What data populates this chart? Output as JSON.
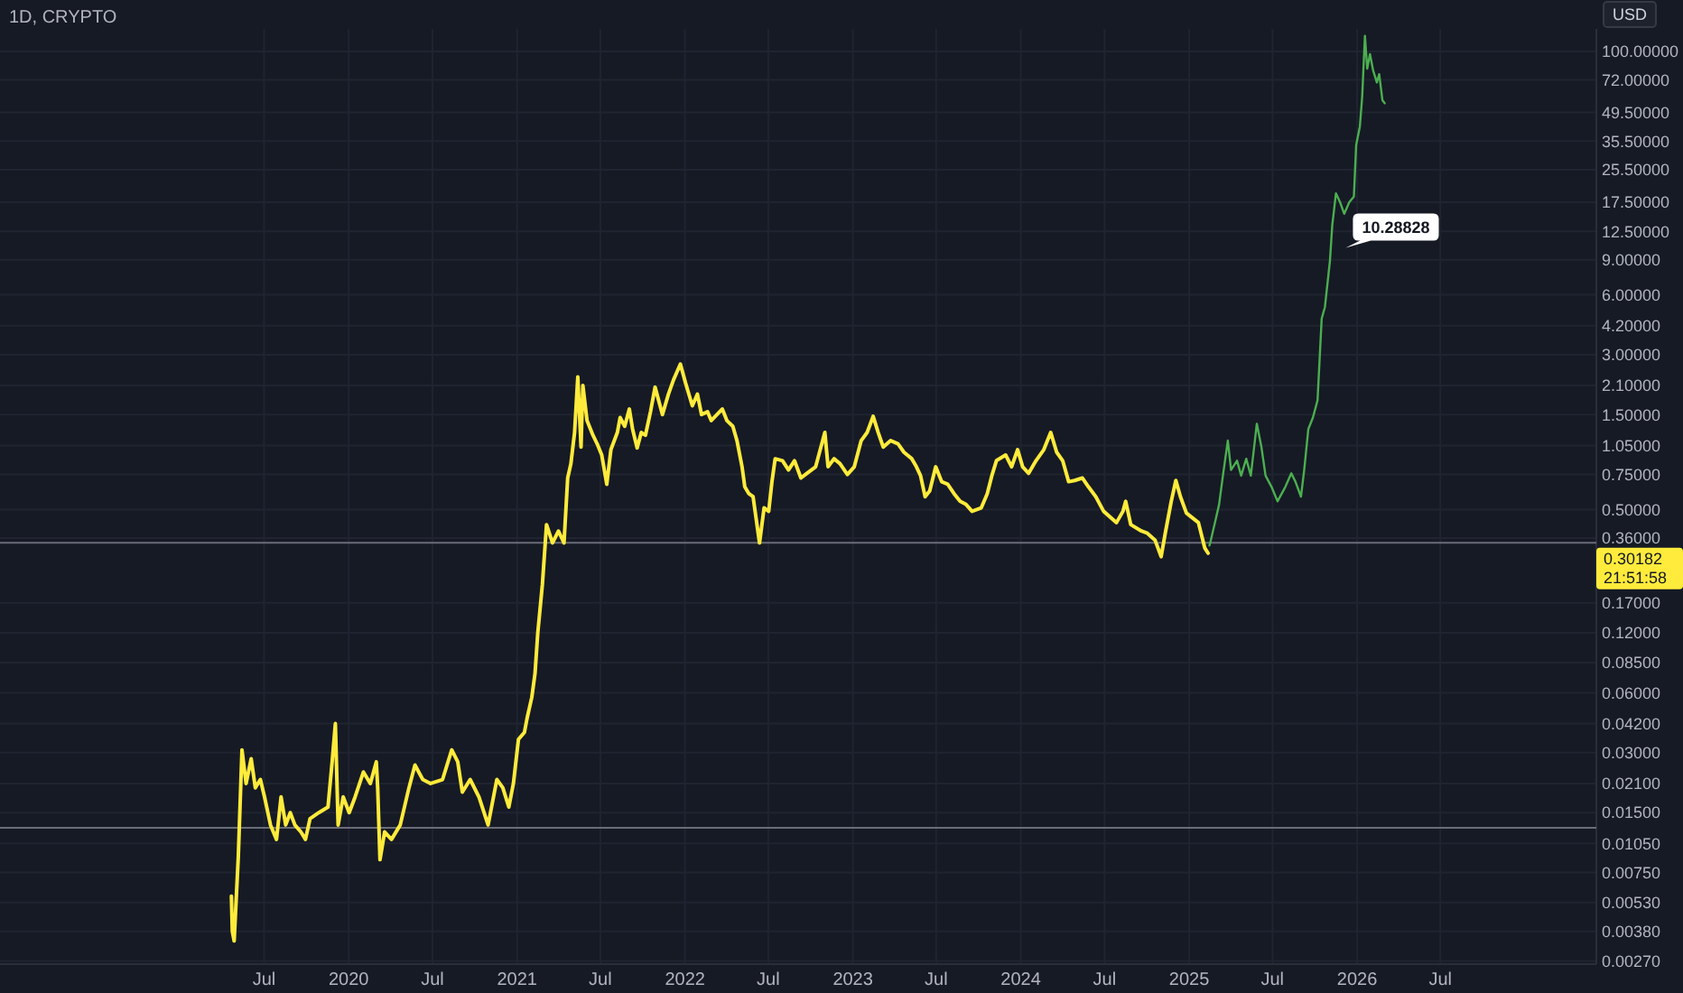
{
  "chart_data": {
    "type": "line",
    "title": "1D, CRYPTO",
    "ylabel": "USD",
    "log": true,
    "grid": true,
    "xlim": [
      "2017-12-04",
      "2027-06-05"
    ],
    "xticks": [
      {
        "value": "2019-07-01",
        "label": "Jul"
      },
      {
        "value": "2020-01-01",
        "label": "2020"
      },
      {
        "value": "2020-07-01",
        "label": "Jul"
      },
      {
        "value": "2021-01-01",
        "label": "2021"
      },
      {
        "value": "2021-07-01",
        "label": "Jul"
      },
      {
        "value": "2022-01-01",
        "label": "2022"
      },
      {
        "value": "2022-07-01",
        "label": "Jul"
      },
      {
        "value": "2023-01-01",
        "label": "2023"
      },
      {
        "value": "2023-07-01",
        "label": "Jul"
      },
      {
        "value": "2024-01-01",
        "label": "2024"
      },
      {
        "value": "2024-07-01",
        "label": "Jul"
      },
      {
        "value": "2025-01-01",
        "label": "2025"
      },
      {
        "value": "2025-07-01",
        "label": "Jul"
      },
      {
        "value": "2026-01-01",
        "label": "2026"
      },
      {
        "value": "2026-07-01",
        "label": "Jul"
      }
    ],
    "ylim": [
      0.0026,
      130
    ],
    "yticks": [
      {
        "value": 100,
        "label": "100.00000"
      },
      {
        "value": 72,
        "label": "72.00000"
      },
      {
        "value": 49.5,
        "label": "49.50000"
      },
      {
        "value": 35.5,
        "label": "35.50000"
      },
      {
        "value": 25.5,
        "label": "25.50000"
      },
      {
        "value": 17.5,
        "label": "17.50000"
      },
      {
        "value": 12.5,
        "label": "12.50000"
      },
      {
        "value": 9,
        "label": "9.00000"
      },
      {
        "value": 6,
        "label": "6.00000"
      },
      {
        "value": 4.2,
        "label": "4.20000"
      },
      {
        "value": 3,
        "label": "3.00000"
      },
      {
        "value": 2.1,
        "label": "2.10000"
      },
      {
        "value": 1.5,
        "label": "1.50000"
      },
      {
        "value": 1.05,
        "label": "1.05000"
      },
      {
        "value": 0.75,
        "label": "0.75000"
      },
      {
        "value": 0.5,
        "label": "0.50000"
      },
      {
        "value": 0.36,
        "label": "0.36000"
      },
      {
        "value": 0.17,
        "label": "0.17000"
      },
      {
        "value": 0.12,
        "label": "0.12000"
      },
      {
        "value": 0.085,
        "label": "0.08500"
      },
      {
        "value": 0.06,
        "label": "0.06000"
      },
      {
        "value": 0.042,
        "label": "0.04200"
      },
      {
        "value": 0.03,
        "label": "0.03000"
      },
      {
        "value": 0.021,
        "label": "0.02100"
      },
      {
        "value": 0.015,
        "label": "0.01500"
      },
      {
        "value": 0.0105,
        "label": "0.01050"
      },
      {
        "value": 0.0075,
        "label": "0.00750"
      },
      {
        "value": 0.0053,
        "label": "0.00530"
      },
      {
        "value": 0.0038,
        "label": "0.00380"
      },
      {
        "value": 0.0027,
        "label": "0.00270"
      }
    ],
    "ref_lines": [
      {
        "axis": "y",
        "value": 0.34,
        "color": "#6a6d78"
      },
      {
        "axis": "y",
        "value": 0.0126,
        "color": "#6a6d78"
      }
    ],
    "annotations": [
      "10.28828",
      "0.30182",
      "21:51:58"
    ],
    "series": [
      {
        "color": "#ffeb3b",
        "x": [
          "2019-04-21",
          "2019-04-23",
          "2019-04-27",
          "2019-05-06",
          "2019-05-14",
          "2019-05-23",
          "2019-06-03",
          "2019-06-12",
          "2019-06-23",
          "2019-07-02",
          "2019-07-15",
          "2019-07-28",
          "2019-08-07",
          "2019-08-17",
          "2019-08-27",
          "2019-09-06",
          "2019-09-19",
          "2019-09-29",
          "2019-10-09",
          "2019-10-28",
          "2019-11-17",
          "2019-11-26",
          "2019-12-03",
          "2019-12-09",
          "2019-12-20",
          "2020-01-02",
          "2020-01-15",
          "2020-02-02",
          "2020-02-17",
          "2020-03-01",
          "2020-03-04",
          "2020-03-09",
          "2020-03-19",
          "2020-04-03",
          "2020-04-22",
          "2020-05-11",
          "2020-05-24",
          "2020-06-10",
          "2020-06-27",
          "2020-07-23",
          "2020-08-12",
          "2020-08-25",
          "2020-09-04",
          "2020-09-21",
          "2020-10-10",
          "2020-10-30",
          "2020-11-18",
          "2020-12-01",
          "2020-12-14",
          "2020-12-24",
          "2021-01-04",
          "2021-01-17",
          "2021-01-23",
          "2021-02-02",
          "2021-02-09",
          "2021-02-15",
          "2021-02-25",
          "2021-03-06",
          "2021-03-19",
          "2021-04-01",
          "2021-04-13",
          "2021-04-21",
          "2021-04-28",
          "2021-05-06",
          "2021-05-13",
          "2021-05-20",
          "2021-05-24",
          "2021-06-02",
          "2021-06-15",
          "2021-06-24",
          "2021-07-04",
          "2021-07-15",
          "2021-07-24",
          "2021-08-07",
          "2021-08-13",
          "2021-08-23",
          "2021-09-02",
          "2021-09-09",
          "2021-09-19",
          "2021-09-28",
          "2021-10-07",
          "2021-10-18",
          "2021-10-28",
          "2021-11-13",
          "2021-11-26",
          "2021-12-07",
          "2021-12-22",
          "2022-01-02",
          "2022-01-17",
          "2022-01-28",
          "2022-02-06",
          "2022-02-19",
          "2022-02-27",
          "2022-03-23",
          "2022-04-02",
          "2022-04-15",
          "2022-04-24",
          "2022-05-05",
          "2022-05-11",
          "2022-05-20",
          "2022-05-29",
          "2022-06-12",
          "2022-06-22",
          "2022-07-02",
          "2022-07-09",
          "2022-07-16",
          "2022-08-01",
          "2022-08-14",
          "2022-08-27",
          "2022-09-10",
          "2022-09-23",
          "2022-10-12",
          "2022-11-01",
          "2022-11-08",
          "2022-11-21",
          "2022-12-04",
          "2022-12-20",
          "2023-01-04",
          "2023-01-19",
          "2023-02-01",
          "2023-02-14",
          "2023-02-25",
          "2023-03-08",
          "2023-03-24",
          "2023-04-09",
          "2023-04-22",
          "2023-05-09",
          "2023-05-19",
          "2023-05-28",
          "2023-06-07",
          "2023-06-17",
          "2023-06-30",
          "2023-07-13",
          "2023-07-26",
          "2023-08-09",
          "2023-08-22",
          "2023-09-04",
          "2023-09-17",
          "2023-10-07",
          "2023-10-20",
          "2023-10-30",
          "2023-11-09",
          "2023-11-29",
          "2023-12-12",
          "2023-12-25",
          "2024-01-05",
          "2024-01-18",
          "2024-02-03",
          "2024-02-20",
          "2024-03-06",
          "2024-03-19",
          "2024-04-01",
          "2024-04-14",
          "2024-04-27",
          "2024-05-14",
          "2024-05-27",
          "2024-06-12",
          "2024-06-29",
          "2024-07-27",
          "2024-08-10",
          "2024-08-16",
          "2024-08-27",
          "2024-09-19",
          "2024-10-02",
          "2024-10-19",
          "2024-11-01",
          "2024-11-10",
          "2024-11-23",
          "2024-12-03",
          "2024-12-13",
          "2024-12-26",
          "2025-01-21",
          "2025-02-04",
          "2025-02-11"
        ],
        "values": [
          0.0057,
          0.0038,
          0.0034,
          0.009,
          0.031,
          0.021,
          0.028,
          0.02,
          0.022,
          0.018,
          0.013,
          0.011,
          0.018,
          0.013,
          0.015,
          0.013,
          0.012,
          0.011,
          0.014,
          0.015,
          0.016,
          0.027,
          0.042,
          0.013,
          0.018,
          0.015,
          0.018,
          0.024,
          0.021,
          0.027,
          0.02,
          0.0087,
          0.012,
          0.011,
          0.013,
          0.02,
          0.026,
          0.022,
          0.021,
          0.022,
          0.031,
          0.027,
          0.019,
          0.022,
          0.018,
          0.013,
          0.022,
          0.02,
          0.016,
          0.021,
          0.035,
          0.038,
          0.045,
          0.057,
          0.075,
          0.12,
          0.21,
          0.42,
          0.34,
          0.39,
          0.34,
          0.72,
          0.85,
          1.22,
          2.32,
          1.03,
          2.1,
          1.4,
          1.18,
          1.07,
          0.94,
          0.67,
          1.0,
          1.22,
          1.45,
          1.31,
          1.6,
          1.27,
          1.02,
          1.22,
          1.18,
          1.55,
          2.06,
          1.5,
          1.9,
          2.24,
          2.69,
          2.17,
          1.66,
          1.9,
          1.5,
          1.55,
          1.4,
          1.6,
          1.4,
          1.31,
          1.11,
          0.82,
          0.65,
          0.6,
          0.58,
          0.34,
          0.51,
          0.49,
          0.69,
          0.9,
          0.88,
          0.79,
          0.88,
          0.72,
          0.76,
          0.82,
          1.22,
          0.82,
          0.9,
          0.85,
          0.75,
          0.82,
          1.11,
          1.22,
          1.47,
          1.22,
          1.03,
          1.11,
          1.07,
          0.97,
          0.9,
          0.82,
          0.74,
          0.58,
          0.62,
          0.82,
          0.69,
          0.67,
          0.6,
          0.55,
          0.53,
          0.49,
          0.51,
          0.6,
          0.74,
          0.88,
          0.94,
          0.82,
          1.0,
          0.82,
          0.76,
          0.88,
          1.0,
          1.22,
          0.97,
          0.88,
          0.69,
          0.7,
          0.72,
          0.65,
          0.58,
          0.49,
          0.43,
          0.49,
          0.55,
          0.42,
          0.39,
          0.38,
          0.35,
          0.29,
          0.38,
          0.55,
          0.7,
          0.58,
          0.48,
          0.43,
          0.32,
          0.30182
        ]
      },
      {
        "color": "#4caf50",
        "x": [
          "2025-02-14",
          "2025-02-17",
          "2025-02-28",
          "2025-03-07",
          "2025-03-16",
          "2025-03-26",
          "2025-04-02",
          "2025-04-15",
          "2025-04-24",
          "2025-05-05",
          "2025-05-15",
          "2025-05-28",
          "2025-06-07",
          "2025-06-16",
          "2025-06-29",
          "2025-07-12",
          "2025-07-29",
          "2025-08-11",
          "2025-08-20",
          "2025-09-01",
          "2025-09-08",
          "2025-09-17",
          "2025-09-27",
          "2025-10-07",
          "2025-10-16",
          "2025-10-23",
          "2025-11-03",
          "2025-11-08",
          "2025-11-16",
          "2025-11-25",
          "2025-12-04",
          "2025-12-15",
          "2025-12-25",
          "2025-12-30",
          "2026-01-07",
          "2026-01-12",
          "2026-01-18",
          "2026-01-23",
          "2026-01-29",
          "2026-02-05",
          "2026-02-13",
          "2026-02-18",
          "2026-02-25",
          "2026-03-02"
        ],
        "values": [
          0.33,
          0.35,
          0.45,
          0.53,
          0.76,
          1.11,
          0.79,
          0.88,
          0.74,
          0.9,
          0.74,
          1.35,
          1.03,
          0.74,
          0.65,
          0.55,
          0.65,
          0.76,
          0.69,
          0.58,
          0.79,
          1.27,
          1.45,
          1.77,
          4.55,
          5.2,
          8.9,
          13.4,
          19.4,
          17.5,
          15.3,
          17.5,
          18.7,
          34,
          42,
          59,
          120,
          82,
          97,
          80,
          70,
          77,
          57,
          55
        ]
      }
    ]
  }
}
